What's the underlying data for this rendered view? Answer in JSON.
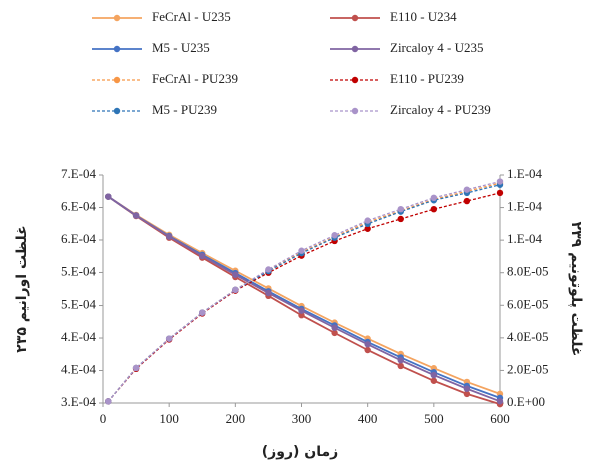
{
  "chart_data": {
    "type": "line",
    "xlabel": "زمان (روز)",
    "ylabel": "غلظت اورانیم ۲۳۵",
    "y2label": "غلظت پلوتونیم ۲۳۹",
    "x": [
      8,
      50,
      100,
      150,
      200,
      250,
      300,
      350,
      400,
      450,
      500,
      550,
      600
    ],
    "xlim": [
      0,
      600
    ],
    "xticks": [
      0,
      100,
      200,
      300,
      400,
      500,
      600
    ],
    "ylim": [
      0.0003,
      0.0007
    ],
    "yticks": [
      {
        "value": 0.0007,
        "label": "7.E-04"
      },
      {
        "value": 0.000643,
        "label": "6.E-04"
      },
      {
        "value": 0.000586,
        "label": "6.E-04"
      },
      {
        "value": 0.000529,
        "label": "5.E-04"
      },
      {
        "value": 0.000471,
        "label": "5.E-04"
      },
      {
        "value": 0.000414,
        "label": "4.E-04"
      },
      {
        "value": 0.000357,
        "label": "4.E-04"
      },
      {
        "value": 0.0003,
        "label": "3.E-04"
      }
    ],
    "y2lim": [
      0,
      0.00014
    ],
    "y2ticks": [
      {
        "value": 0.00014,
        "label": "1.E-04"
      },
      {
        "value": 0.00012,
        "label": "1.E-04"
      },
      {
        "value": 0.0001,
        "label": "1.E-04"
      },
      {
        "value": 8e-05,
        "label": "8.0E-05"
      },
      {
        "value": 6e-05,
        "label": "6.0E-05"
      },
      {
        "value": 4e-05,
        "label": "4.0E-05"
      },
      {
        "value": 2e-05,
        "label": "2.0E-05"
      },
      {
        "value": 0,
        "label": "0.E+00"
      }
    ],
    "grid": false,
    "legend": "top",
    "series": [
      {
        "name": "FeCrAl - U235",
        "color": "#f4a460",
        "dashed": false,
        "values": [
          0.000662,
          0.00063,
          0.000595,
          0.000563,
          0.000532,
          0.000501,
          0.00047,
          0.000441,
          0.000413,
          0.000386,
          0.000361,
          0.000337,
          0.000316
        ]
      },
      {
        "name": "E110 - U234",
        "color": "#c0504d",
        "dashed": false,
        "values": [
          0.000662,
          0.000628,
          0.00059,
          0.000555,
          0.000521,
          0.000488,
          0.000454,
          0.000423,
          0.000393,
          0.000365,
          0.000339,
          0.000316,
          0.000298
        ]
      },
      {
        "name": "M5 - U235",
        "color": "#4472c4",
        "dashed": false,
        "values": [
          0.000662,
          0.000629,
          0.000593,
          0.00056,
          0.000528,
          0.000496,
          0.000465,
          0.000436,
          0.000407,
          0.00038,
          0.000354,
          0.00033,
          0.000309
        ]
      },
      {
        "name": "Zircaloy 4 - U235",
        "color": "#8064a2",
        "dashed": false,
        "values": [
          0.000662,
          0.000629,
          0.000592,
          0.000558,
          0.000525,
          0.000493,
          0.000462,
          0.000432,
          0.000403,
          0.000375,
          0.000349,
          0.000325,
          0.000303
        ]
      },
      {
        "name": "FeCrAl - PU239",
        "color": "#f79646",
        "dashed": true,
        "axis": "y2",
        "values": [
          1e-06,
          2.15e-05,
          3.95e-05,
          5.55e-05,
          6.95e-05,
          8.15e-05,
          9.25e-05,
          0.000102,
          0.000111,
          0.000118,
          0.000125,
          0.00013,
          0.000135
        ]
      },
      {
        "name": "E110 - PU239",
        "color": "#c00000",
        "dashed": true,
        "axis": "y2",
        "values": [
          1e-06,
          2.1e-05,
          3.9e-05,
          5.5e-05,
          6.9e-05,
          8e-05,
          9.05e-05,
          9.95e-05,
          0.000107,
          0.000113,
          0.000119,
          0.000124,
          0.000129
        ]
      },
      {
        "name": "M5 - PU239",
        "color": "#2e75b6",
        "dashed": true,
        "axis": "y2",
        "values": [
          1e-06,
          2.15e-05,
          3.95e-05,
          5.55e-05,
          6.95e-05,
          8.1e-05,
          9.2e-05,
          0.0001015,
          0.00011,
          0.0001175,
          0.0001245,
          0.000129,
          0.000134
        ]
      },
      {
        "name": "Zircaloy 4 - PU239",
        "color": "#a993c9",
        "dashed": true,
        "axis": "y2",
        "values": [
          1e-06,
          2.15e-05,
          3.95e-05,
          5.55e-05,
          6.95e-05,
          8.2e-05,
          9.35e-05,
          0.000103,
          0.000112,
          0.000119,
          0.000126,
          0.000131,
          0.000136
        ]
      }
    ]
  }
}
